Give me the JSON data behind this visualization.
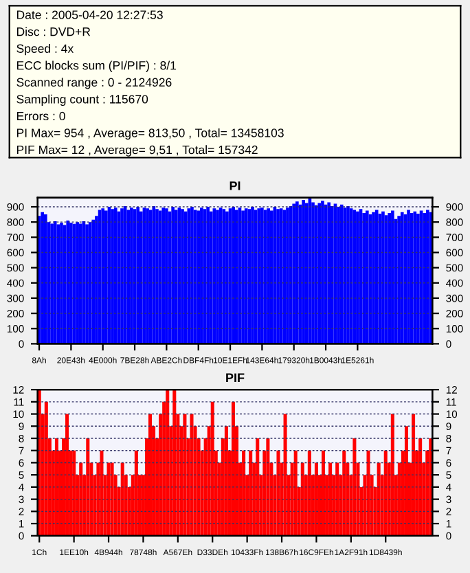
{
  "chart_data": [
    {
      "type": "other",
      "annotations": [
        "Date : 2005-04-20 12:27:53",
        "Disc : DVD+R",
        "Speed : 4x",
        "ECC blocks sum (PI/PIF) : 8/1",
        "Scanned range : 0 - 2124926",
        "Sampling count : 115670",
        "Errors : 0",
        "PI Max= 954 , Average= 813,50 , Total= 13458103",
        "PIF Max= 12 , Average= 9,51 , Total= 157342"
      ]
    },
    {
      "type": "bar",
      "title": "PI",
      "color": "#0000ff",
      "grid": "y",
      "categories": [
        "8Ah",
        null,
        null,
        null,
        null,
        null,
        null,
        null,
        null,
        null,
        "20E43h",
        null,
        null,
        null,
        null,
        null,
        null,
        null,
        null,
        null,
        "4E000h",
        null,
        null,
        null,
        null,
        null,
        null,
        null,
        null,
        null,
        "7BE28h",
        null,
        null,
        null,
        null,
        null,
        null,
        null,
        null,
        null,
        "ABE2Ch",
        null,
        null,
        null,
        null,
        null,
        null,
        null,
        null,
        null,
        "DBF4Fh",
        null,
        null,
        null,
        null,
        null,
        null,
        null,
        null,
        null,
        "10E1EFh",
        null,
        null,
        null,
        null,
        null,
        null,
        null,
        null,
        null,
        "143E64h",
        null,
        null,
        null,
        null,
        null,
        null,
        null,
        null,
        null,
        "179320h",
        null,
        null,
        null,
        null,
        null,
        null,
        null,
        null,
        null,
        "1B0043h",
        null,
        null,
        null,
        null,
        null,
        null,
        null,
        null,
        null,
        "1E5261h",
        null,
        null,
        null,
        null,
        null,
        null,
        null,
        null,
        null,
        null,
        null,
        null,
        null,
        null,
        null,
        null,
        null,
        null,
        null,
        null,
        null,
        null,
        null
      ],
      "values": [
        840,
        865,
        850,
        800,
        790,
        805,
        785,
        795,
        780,
        810,
        795,
        788,
        800,
        790,
        805,
        785,
        800,
        815,
        840,
        880,
        890,
        875,
        900,
        885,
        895,
        870,
        890,
        905,
        880,
        895,
        885,
        900,
        870,
        895,
        890,
        880,
        905,
        885,
        875,
        895,
        890,
        870,
        900,
        880,
        895,
        885,
        870,
        890,
        900,
        880,
        875,
        895,
        885,
        900,
        870,
        890,
        880,
        895,
        885,
        870,
        890,
        900,
        880,
        895,
        875,
        890,
        885,
        900,
        880,
        890,
        895,
        880,
        890,
        875,
        900,
        885,
        890,
        880,
        895,
        905,
        920,
        935,
        915,
        945,
        925,
        954,
        930,
        910,
        925,
        940,
        915,
        930,
        905,
        920,
        900,
        915,
        895,
        905,
        890,
        880,
        870,
        885,
        860,
        875,
        850,
        865,
        880,
        855,
        870,
        845,
        860,
        875,
        820,
        840,
        865,
        850,
        880,
        860,
        870,
        855,
        875,
        860,
        880,
        865
      ],
      "ylim": [
        0,
        960
      ],
      "yticks": [
        0,
        100,
        200,
        300,
        400,
        500,
        600,
        700,
        800,
        900
      ],
      "y2lim": [
        0,
        960
      ],
      "y2ticks": [
        0,
        100,
        200,
        300,
        400,
        500,
        600,
        700,
        800,
        900
      ]
    },
    {
      "type": "bar",
      "title": "PIF",
      "color": "#ff0000",
      "grid": "y",
      "categories": [
        "1Ch",
        null,
        null,
        null,
        null,
        null,
        null,
        null,
        null,
        null,
        "1EE10h",
        null,
        null,
        null,
        null,
        null,
        null,
        null,
        null,
        null,
        "4B944h",
        null,
        null,
        null,
        null,
        null,
        null,
        null,
        null,
        null,
        "78748h",
        null,
        null,
        null,
        null,
        null,
        null,
        null,
        null,
        null,
        "A567Eh",
        null,
        null,
        null,
        null,
        null,
        null,
        null,
        null,
        null,
        "D33DEh",
        null,
        null,
        null,
        null,
        null,
        null,
        null,
        null,
        null,
        "10433Fh",
        null,
        null,
        null,
        null,
        null,
        null,
        null,
        null,
        null,
        "138B67h",
        null,
        null,
        null,
        null,
        null,
        null,
        null,
        null,
        null,
        "16C9FEh",
        null,
        null,
        null,
        null,
        null,
        null,
        null,
        null,
        null,
        "1A2F91h",
        null,
        null,
        null,
        null,
        null,
        null,
        null,
        null,
        null,
        "1D8439h",
        null,
        null,
        null,
        null,
        null,
        null,
        null,
        null,
        null,
        null,
        null,
        null,
        null
      ],
      "values": [
        12,
        10,
        11,
        8,
        7,
        8,
        7,
        8,
        10,
        7,
        7,
        5,
        6,
        5,
        8,
        6,
        5,
        6,
        7,
        5,
        6,
        6,
        5,
        4,
        6,
        5,
        4,
        5,
        7,
        5,
        5,
        8,
        10,
        9,
        8,
        10,
        11,
        12,
        9,
        12,
        10,
        9,
        10,
        8,
        10,
        9,
        8,
        7,
        8,
        9,
        11,
        7,
        6,
        8,
        9,
        7,
        11,
        9,
        6,
        7,
        5,
        7,
        6,
        8,
        5,
        7,
        8,
        6,
        5,
        7,
        6,
        10,
        5,
        6,
        7,
        4,
        6,
        5,
        7,
        5,
        6,
        5,
        7,
        5,
        6,
        5,
        6,
        5,
        7,
        6,
        5,
        8,
        6,
        4,
        5,
        7,
        5,
        4,
        6,
        5,
        7,
        6,
        10,
        5,
        6,
        7,
        9,
        6,
        10,
        7,
        8,
        6,
        7,
        8
      ],
      "ylim": [
        0,
        12
      ],
      "yticks": [
        0,
        1,
        2,
        3,
        4,
        5,
        6,
        7,
        8,
        9,
        10,
        11,
        12
      ],
      "y2lim": [
        0,
        12
      ],
      "y2ticks": [
        0,
        1,
        2,
        3,
        4,
        5,
        6,
        7,
        8,
        9,
        10,
        11,
        12
      ]
    }
  ]
}
